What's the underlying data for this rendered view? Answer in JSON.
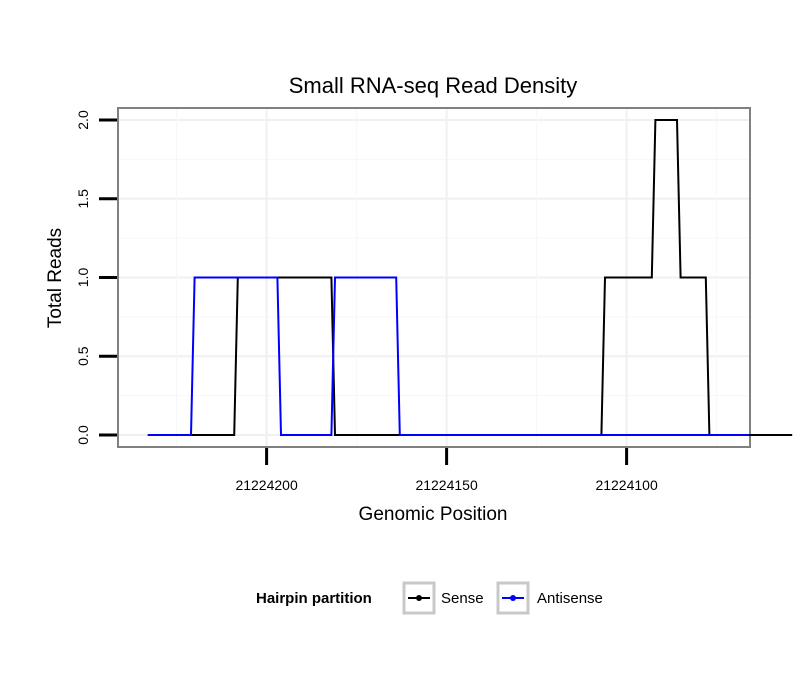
{
  "chart_data": {
    "type": "line",
    "title": "Small RNA-seq Read Density",
    "xlabel": "Genomic Position",
    "ylabel": "Total Reads",
    "x_reversed": true,
    "xlim": [
      21224241,
      21224066
    ],
    "ylim": [
      -0.07,
      2.07
    ],
    "x_ticks": [
      21224200,
      21224150,
      21224100
    ],
    "x_tick_labels": [
      "21224200",
      "21224150",
      21224100
    ],
    "y_ticks": [
      0,
      0.5,
      1,
      1.5,
      2
    ],
    "y_tick_labels": [
      "0.0",
      "0.5",
      "1.0",
      "1.5",
      "2.0"
    ],
    "grid": true,
    "legend": {
      "title": "Hairpin partition",
      "position": "bottom",
      "entries": [
        "Sense",
        "Antisense"
      ]
    },
    "series": [
      {
        "name": "Sense",
        "color": "#000000",
        "x": [
          21224233,
          21224209,
          21224208,
          21224195,
          21224194,
          21224182,
          21224181,
          21224107,
          21224106,
          21224093,
          21224092,
          21224086,
          21224085,
          21224078,
          21224077,
          21224066.5,
          21224066,
          21224054
        ],
        "y": [
          0,
          0,
          1,
          1,
          1,
          1,
          0,
          0,
          1,
          1,
          2,
          2,
          1,
          1,
          0,
          0,
          0,
          0
        ]
      },
      {
        "name": "Antisense",
        "color": "#0000ff",
        "x": [
          21224233,
          21224221,
          21224220,
          21224197,
          21224196,
          21224182,
          21224181,
          21224164,
          21224163,
          21224066
        ],
        "y": [
          0,
          0,
          1,
          1,
          0,
          0,
          1,
          1,
          0,
          0
        ]
      }
    ]
  }
}
